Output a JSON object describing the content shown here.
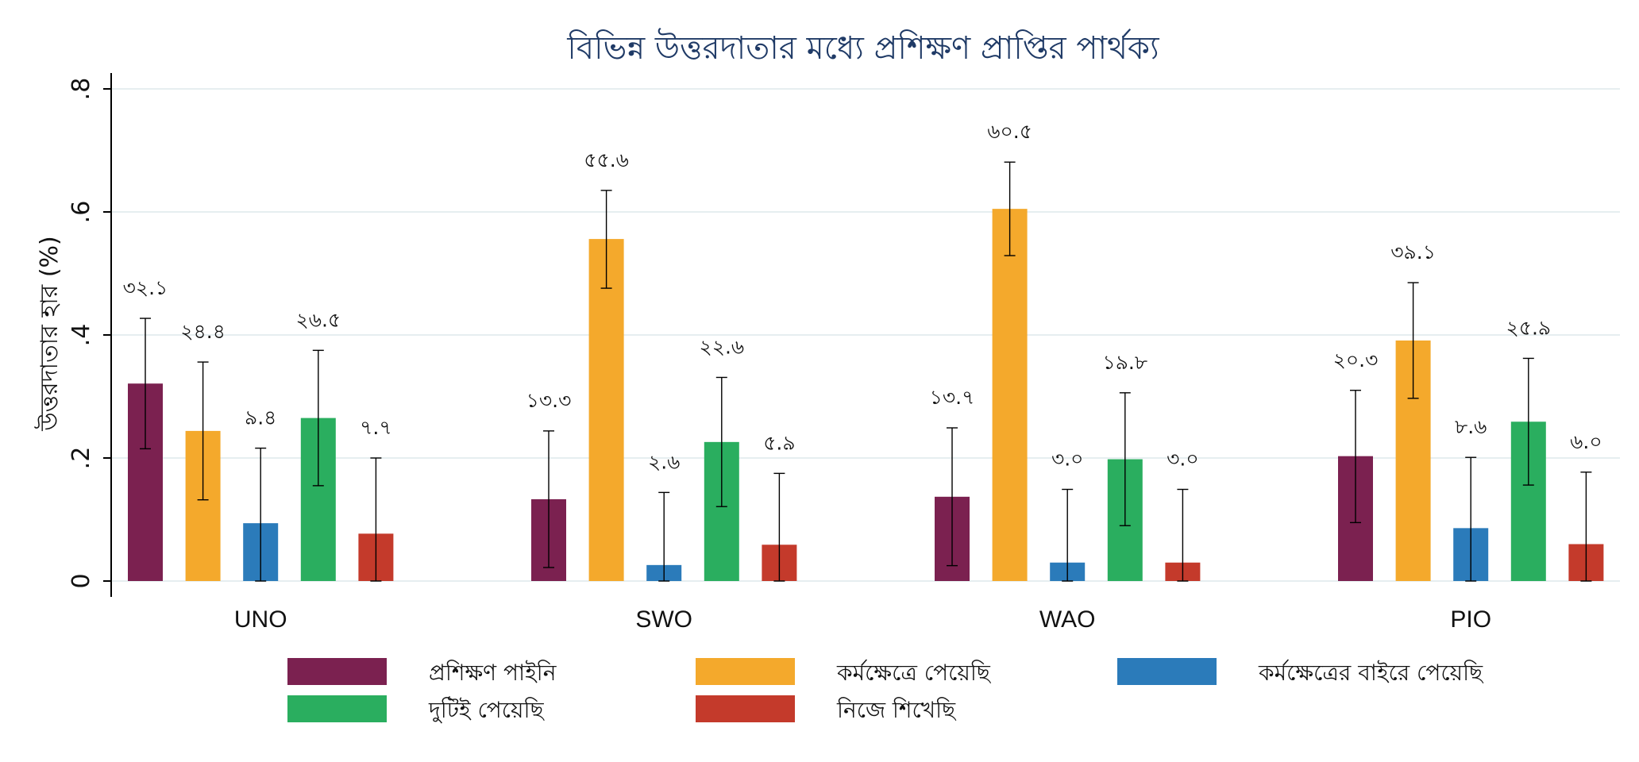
{
  "chart_data": {
    "type": "bar",
    "title": "বিভিন্ন উত্তরদাতার মধ্যে প্রশিক্ষণ প্রাপ্তির পার্থক্য",
    "ylabel": "উত্তরদাতার হার (%)",
    "xlabel": "",
    "ylim": [
      0,
      0.8
    ],
    "yticks": [
      0,
      0.2,
      0.4,
      0.6,
      0.8
    ],
    "ytick_labels": [
      "0",
      ".2",
      ".4",
      ".6",
      ".8"
    ],
    "grid": true,
    "legend_position": "bottom",
    "categories": [
      "UNO",
      "SWO",
      "WAO",
      "PIO"
    ],
    "series": [
      {
        "name": "প্রশিক্ষণ পাইনি",
        "color": "#7b2150",
        "values": [
          0.321,
          0.133,
          0.137,
          0.203
        ],
        "labels": [
          "৩২.১",
          "১৩.৩",
          "১৩.৭",
          "২০.৩"
        ],
        "ci_low": [
          0.215,
          0.022,
          0.025,
          0.095
        ],
        "ci_high": [
          0.427,
          0.244,
          0.249,
          0.31
        ]
      },
      {
        "name": "কর্মক্ষেত্রে পেয়েছি",
        "color": "#f4a92c",
        "values": [
          0.244,
          0.556,
          0.605,
          0.391
        ],
        "labels": [
          "২৪.৪",
          "৫৫.৬",
          "৬০.৫",
          "৩৯.১"
        ],
        "ci_low": [
          0.132,
          0.476,
          0.529,
          0.297
        ],
        "ci_high": [
          0.356,
          0.635,
          0.681,
          0.485
        ]
      },
      {
        "name": "কর্মক্ষেত্রের বাইরে পেয়েছি",
        "color": "#2b7bba",
        "values": [
          0.094,
          0.026,
          0.03,
          0.086
        ],
        "labels": [
          "৯.৪",
          "২.৬",
          "৩.০",
          "৮.৬"
        ],
        "ci_low": [
          0.0,
          0.0,
          0.0,
          0.0
        ],
        "ci_high": [
          0.216,
          0.144,
          0.149,
          0.201
        ]
      },
      {
        "name": "দুটিই পেয়েছি",
        "color": "#2aae5f",
        "values": [
          0.265,
          0.226,
          0.198,
          0.259
        ],
        "labels": [
          "২৬.৫",
          "২২.৬",
          "১৯.৮",
          "২৫.৯"
        ],
        "ci_low": [
          0.155,
          0.121,
          0.09,
          0.156
        ],
        "ci_high": [
          0.375,
          0.331,
          0.306,
          0.362
        ]
      },
      {
        "name": "নিজে শিখেছি",
        "color": "#c43a2b",
        "values": [
          0.077,
          0.059,
          0.03,
          0.06
        ],
        "labels": [
          "৭.৭",
          "৫.৯",
          "৩.০",
          "৬.০"
        ],
        "ci_low": [
          0.0,
          0.0,
          0.0,
          0.0
        ],
        "ci_high": [
          0.2,
          0.175,
          0.149,
          0.177
        ]
      }
    ]
  }
}
